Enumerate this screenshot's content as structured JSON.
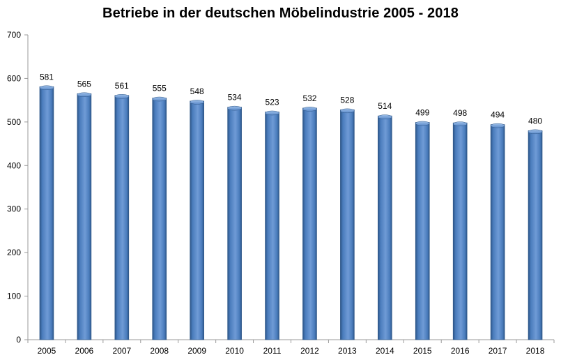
{
  "chart_data": {
    "type": "bar",
    "title": "Betriebe in der deutschen Möbelindustrie 2005 - 2018",
    "xlabel": "",
    "ylabel": "",
    "categories": [
      "2005",
      "2006",
      "2007",
      "2008",
      "2009",
      "2010",
      "2011",
      "2012",
      "2013",
      "2014",
      "2015",
      "2016",
      "2017",
      "2018"
    ],
    "values": [
      581,
      565,
      561,
      555,
      548,
      534,
      523,
      532,
      528,
      514,
      499,
      498,
      494,
      480
    ],
    "ylim": [
      0,
      700
    ],
    "yticks": [
      0,
      100,
      200,
      300,
      400,
      500,
      600,
      700
    ],
    "data_labels": true,
    "legend": "none",
    "grid": false,
    "bar_color": "#4f81bd",
    "bar_color_dark": "#2c5587",
    "bar_color_light": "#7aa3d8"
  }
}
